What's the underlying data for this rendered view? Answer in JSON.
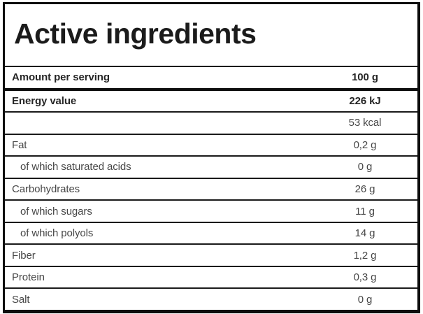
{
  "title": "Active ingredients",
  "table": {
    "header_row": {
      "label": "Amount per serving",
      "value": "100 g"
    },
    "rows": [
      {
        "label": "Energy value",
        "value": "226 kJ"
      },
      {
        "label": "",
        "value": "53 kcal"
      },
      {
        "label": "Fat",
        "value": "0,2 g"
      },
      {
        "label": "of which saturated acids",
        "value": "0 g"
      },
      {
        "label": "Carbohydrates",
        "value": "26 g"
      },
      {
        "label": "of which sugars",
        "value": "11 g"
      },
      {
        "label": "of which polyols",
        "value": "14 g"
      },
      {
        "label": "Fiber",
        "value": "1,2 g"
      },
      {
        "label": "Protein",
        "value": "0,3 g"
      },
      {
        "label": "Salt",
        "value": "0 g"
      }
    ]
  },
  "colors": {
    "background": "#ffffff",
    "border": "#0e0e0e",
    "text_bold": "#262626",
    "text_regular": "#474747"
  }
}
